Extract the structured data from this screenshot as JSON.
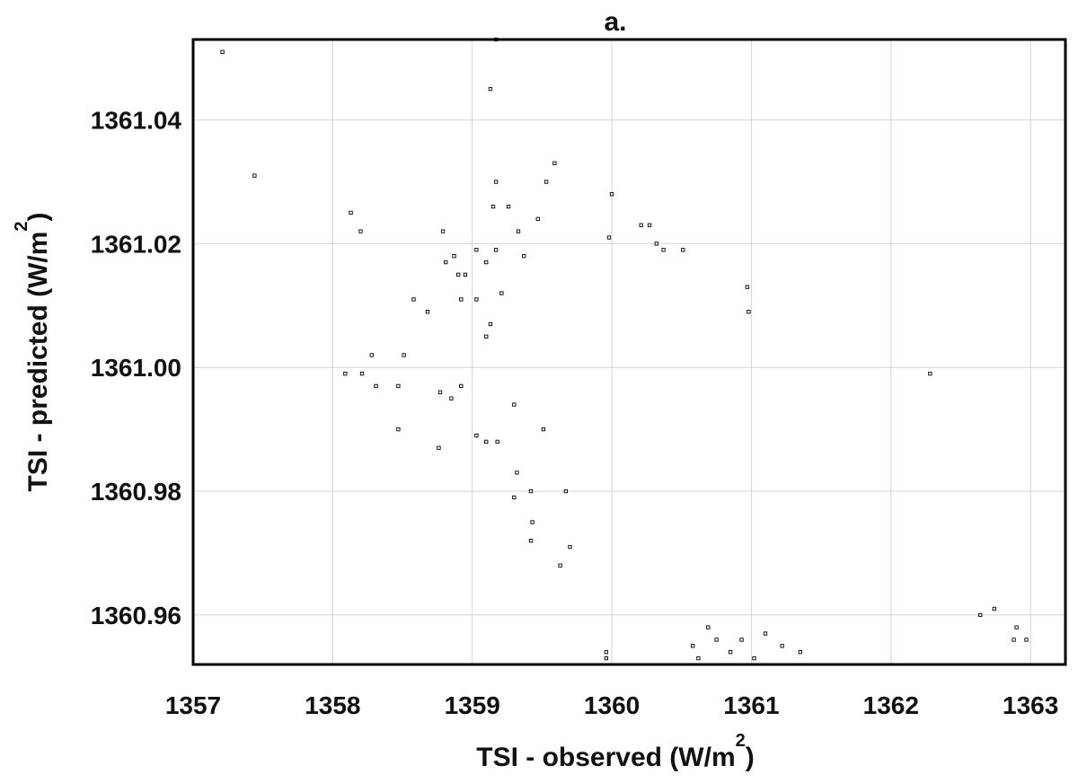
{
  "chart_data": {
    "type": "scatter",
    "title": "a.",
    "xlabel": {
      "text": "TSI - observed (W/m",
      "sup": "2",
      "close": ")"
    },
    "ylabel": {
      "text": "TSI - predicted (W/m",
      "sup": "2",
      "close": ")"
    },
    "xlim": [
      1357,
      1363.25
    ],
    "ylim": [
      1360.952,
      1361.053
    ],
    "xticks": [
      1357,
      1358,
      1359,
      1360,
      1361,
      1362,
      1363
    ],
    "xtick_labels": [
      "1357",
      "1358",
      "1359",
      "1360",
      "1361",
      "1362",
      "1363"
    ],
    "yticks": [
      1360.96,
      1360.98,
      1361.0,
      1361.02,
      1361.04
    ],
    "ytick_labels": [
      "1360.96",
      "1360.98",
      "1361.00",
      "1361.02",
      "1361.04"
    ],
    "grid": true,
    "marker": "open-square",
    "points": [
      [
        1357.21,
        1361.051
      ],
      [
        1357.44,
        1361.031
      ],
      [
        1358.13,
        1361.025
      ],
      [
        1358.2,
        1361.022
      ],
      [
        1358.09,
        1360.999
      ],
      [
        1358.21,
        1360.999
      ],
      [
        1358.31,
        1360.997
      ],
      [
        1358.28,
        1361.002
      ],
      [
        1358.51,
        1361.002
      ],
      [
        1358.58,
        1361.011
      ],
      [
        1358.68,
        1361.009
      ],
      [
        1358.47,
        1360.997
      ],
      [
        1358.47,
        1360.99
      ],
      [
        1358.76,
        1360.987
      ],
      [
        1358.77,
        1360.996
      ],
      [
        1358.85,
        1360.995
      ],
      [
        1358.92,
        1360.997
      ],
      [
        1358.79,
        1361.022
      ],
      [
        1358.81,
        1361.017
      ],
      [
        1358.87,
        1361.018
      ],
      [
        1358.9,
        1361.015
      ],
      [
        1358.95,
        1361.015
      ],
      [
        1358.92,
        1361.011
      ],
      [
        1359.03,
        1361.011
      ],
      [
        1359.03,
        1361.019
      ],
      [
        1359.1,
        1361.017
      ],
      [
        1359.17,
        1361.019
      ],
      [
        1359.21,
        1361.012
      ],
      [
        1359.15,
        1361.026
      ],
      [
        1359.17,
        1361.03
      ],
      [
        1359.26,
        1361.026
      ],
      [
        1359.33,
        1361.022
      ],
      [
        1359.17,
        1361.053
      ],
      [
        1359.13,
        1361.045
      ],
      [
        1359.53,
        1361.03
      ],
      [
        1359.59,
        1361.033
      ],
      [
        1359.47,
        1361.024
      ],
      [
        1359.37,
        1361.018
      ],
      [
        1359.1,
        1361.005
      ],
      [
        1359.13,
        1361.007
      ],
      [
        1359.03,
        1360.989
      ],
      [
        1359.1,
        1360.988
      ],
      [
        1359.18,
        1360.988
      ],
      [
        1359.3,
        1360.994
      ],
      [
        1359.32,
        1360.983
      ],
      [
        1359.42,
        1360.98
      ],
      [
        1359.3,
        1360.979
      ],
      [
        1359.43,
        1360.975
      ],
      [
        1359.42,
        1360.972
      ],
      [
        1359.51,
        1360.99
      ],
      [
        1359.67,
        1360.98
      ],
      [
        1359.7,
        1360.971
      ],
      [
        1359.63,
        1360.968
      ],
      [
        1359.98,
        1361.021
      ],
      [
        1360,
        1361.028
      ],
      [
        1360.27,
        1361.023
      ],
      [
        1360.21,
        1361.023
      ],
      [
        1360.51,
        1361.019
      ],
      [
        1360.37,
        1361.019
      ],
      [
        1360.32,
        1361.02
      ],
      [
        1360.97,
        1361.013
      ],
      [
        1360.98,
        1361.009
      ],
      [
        1362.28,
        1360.999
      ],
      [
        1359.96,
        1360.954
      ],
      [
        1359.96,
        1360.953
      ],
      [
        1362.88,
        1360.956
      ],
      [
        1362.97,
        1360.956
      ],
      [
        1362.9,
        1360.958
      ],
      [
        1362.74,
        1360.961
      ],
      [
        1362.64,
        1360.96
      ],
      [
        1360.62,
        1360.953
      ],
      [
        1360.58,
        1360.955
      ],
      [
        1360.69,
        1360.958
      ],
      [
        1360.75,
        1360.956
      ],
      [
        1360.85,
        1360.954
      ],
      [
        1360.93,
        1360.956
      ],
      [
        1361.02,
        1360.953
      ],
      [
        1361.1,
        1360.957
      ],
      [
        1361.22,
        1360.955
      ],
      [
        1361.35,
        1360.954
      ]
    ]
  }
}
